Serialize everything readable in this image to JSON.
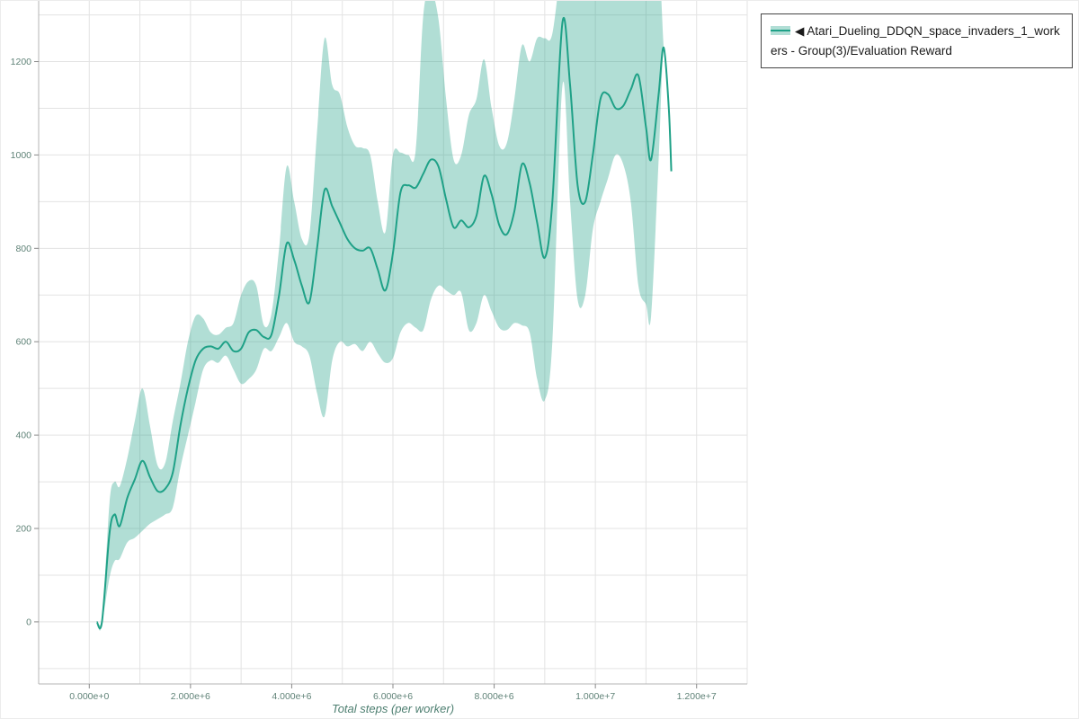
{
  "page": {
    "background": "#ffffff"
  },
  "legend": {
    "marker": "◀",
    "label": "Atari_Dueling_DDQN_space_invaders_1_workers - Group(3)/Evaluation Reward"
  },
  "colors": {
    "line": "#1fa187",
    "band": "rgba(31,161,135,0.35)",
    "grid": "#e3e3e3",
    "axis": "#b5b5b5",
    "tick_text": "#5f8277"
  },
  "chart_data": {
    "type": "line",
    "title": "",
    "xlabel": "Total steps (per worker)",
    "ylabel": "",
    "legend_position": "top-right",
    "grid": true,
    "x_unit": 1000000,
    "xlim": [
      -1,
      13
    ],
    "ylim": [
      -133,
      1330
    ],
    "x_gridline_step": 1,
    "y_gridline_step": 100,
    "x_ticks": [
      {
        "v": 0,
        "label": "0.000e+0"
      },
      {
        "v": 2,
        "label": "2.000e+6"
      },
      {
        "v": 4,
        "label": "4.000e+6"
      },
      {
        "v": 6,
        "label": "6.000e+6"
      },
      {
        "v": 8,
        "label": "8.000e+6"
      },
      {
        "v": 10,
        "label": "1.000e+7"
      },
      {
        "v": 12,
        "label": "1.200e+7"
      }
    ],
    "y_ticks": [
      {
        "v": 0,
        "label": "0"
      },
      {
        "v": 200,
        "label": "200"
      },
      {
        "v": 400,
        "label": "400"
      },
      {
        "v": 600,
        "label": "600"
      },
      {
        "v": 800,
        "label": "800"
      },
      {
        "v": 1000,
        "label": "1000"
      },
      {
        "v": 1200,
        "label": "1200"
      }
    ],
    "series": [
      {
        "name": "Atari_Dueling_DDQN_space_invaders_1_workers - Group(3)/Evaluation Reward",
        "line_color": "#1fa187",
        "band_fill": "rgba(31,161,135,0.35)",
        "x": [
          0.15,
          0.25,
          0.4,
          0.5,
          0.6,
          0.75,
          0.9,
          1.05,
          1.2,
          1.35,
          1.5,
          1.65,
          1.8,
          1.95,
          2.1,
          2.25,
          2.4,
          2.55,
          2.7,
          2.85,
          3.0,
          3.15,
          3.3,
          3.45,
          3.6,
          3.75,
          3.9,
          4.05,
          4.2,
          4.35,
          4.5,
          4.65,
          4.8,
          4.95,
          5.1,
          5.25,
          5.4,
          5.55,
          5.7,
          5.85,
          6.0,
          6.15,
          6.3,
          6.45,
          6.6,
          6.75,
          6.9,
          7.05,
          7.2,
          7.35,
          7.5,
          7.65,
          7.8,
          7.95,
          8.1,
          8.25,
          8.4,
          8.55,
          8.7,
          8.85,
          9.0,
          9.15,
          9.35,
          9.5,
          9.65,
          9.8,
          9.95,
          10.1,
          10.25,
          10.4,
          10.55,
          10.7,
          10.85,
          11.0,
          11.1,
          11.25,
          11.35,
          11.45,
          11.5
        ],
        "mean": [
          0,
          0,
          190,
          230,
          205,
          265,
          305,
          345,
          310,
          280,
          285,
          320,
          420,
          500,
          560,
          585,
          590,
          585,
          600,
          580,
          585,
          620,
          625,
          610,
          615,
          700,
          810,
          775,
          720,
          685,
          800,
          925,
          890,
          855,
          820,
          800,
          795,
          800,
          755,
          710,
          790,
          920,
          935,
          930,
          960,
          990,
          975,
          905,
          845,
          860,
          845,
          870,
          955,
          915,
          850,
          830,
          880,
          980,
          940,
          855,
          780,
          900,
          1285,
          1150,
          935,
          900,
          1000,
          1120,
          1130,
          1100,
          1105,
          1140,
          1170,
          1060,
          990,
          1130,
          1230,
          1100,
          965
        ],
        "band_low": [
          0,
          0,
          95,
          130,
          135,
          170,
          180,
          195,
          210,
          220,
          230,
          245,
          330,
          400,
          470,
          540,
          560,
          555,
          570,
          540,
          510,
          520,
          540,
          585,
          580,
          610,
          640,
          600,
          590,
          570,
          490,
          440,
          560,
          600,
          590,
          595,
          580,
          600,
          575,
          555,
          565,
          620,
          640,
          630,
          625,
          690,
          720,
          710,
          700,
          705,
          625,
          640,
          700,
          665,
          630,
          625,
          640,
          635,
          620,
          520,
          475,
          600,
          1150,
          900,
          690,
          700,
          840,
          900,
          950,
          1000,
          980,
          900,
          720,
          680,
          655,
          990,
          1230,
          1100,
          965
        ],
        "band_high": [
          0,
          0,
          255,
          300,
          290,
          350,
          430,
          500,
          420,
          335,
          340,
          430,
          510,
          600,
          655,
          650,
          620,
          615,
          630,
          640,
          700,
          730,
          720,
          635,
          660,
          800,
          975,
          900,
          820,
          830,
          1050,
          1250,
          1150,
          1130,
          1060,
          1020,
          1015,
          1000,
          900,
          835,
          1000,
          1005,
          1000,
          1010,
          1300,
          1350,
          1290,
          1120,
          990,
          1000,
          1085,
          1120,
          1205,
          1100,
          1020,
          1025,
          1120,
          1235,
          1200,
          1250,
          1250,
          1260,
          1420,
          1420,
          1380,
          1360,
          1380,
          1420,
          1420,
          1400,
          1420,
          1430,
          1430,
          1420,
          1400,
          1420,
          1230,
          1100,
          965
        ]
      }
    ]
  }
}
